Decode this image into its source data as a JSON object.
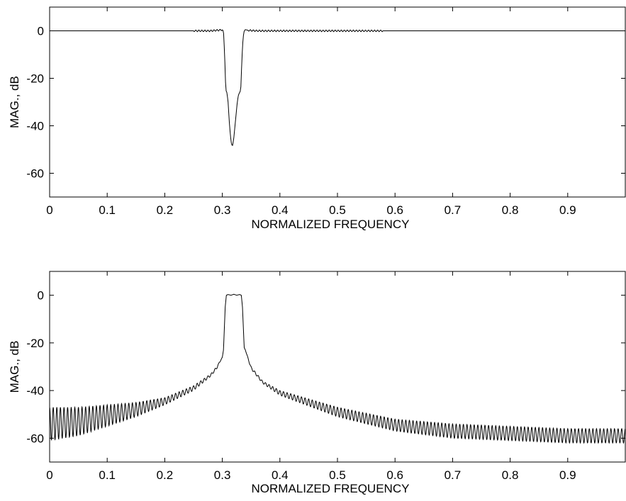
{
  "chart_data": [
    {
      "type": "line",
      "title": "",
      "xlabel": "NORMALIZED FREQUENCY",
      "ylabel": "MAG., dB",
      "xlim": [
        0,
        1
      ],
      "ylim": [
        -70,
        10
      ],
      "xticks": [
        0,
        0.1,
        0.2,
        0.3,
        0.4,
        0.5,
        0.6,
        0.7,
        0.8,
        0.9
      ],
      "xtick_labels": [
        "0",
        "0.1",
        "0.2",
        "0.3",
        "0.4",
        "0.5",
        "0.6",
        "0.7",
        "0.8",
        "0.9"
      ],
      "yticks": [
        0,
        -20,
        -40,
        -60
      ],
      "ytick_labels": [
        "0",
        "-20",
        "-40",
        "-60"
      ],
      "grid": false,
      "legend": "none",
      "line_color": "#000000",
      "series": [
        {
          "x": [
            0,
            0.28,
            0.295,
            0.3,
            0.302,
            0.304,
            0.306,
            0.308,
            0.31,
            0.312,
            0.314,
            0.316,
            0.318,
            0.32,
            0.322,
            0.324,
            0.326,
            0.328,
            0.33,
            0.332,
            0.334,
            0.336,
            0.338,
            0.34,
            0.345,
            0.36,
            1.0
          ],
          "y": [
            0,
            0,
            0.3,
            0.4,
            0,
            -10,
            -25,
            -26,
            -30,
            -38,
            -44,
            -48,
            -48.3,
            -45,
            -40,
            -35,
            -30,
            -27,
            -26,
            -25,
            -12,
            -3,
            0,
            0.5,
            0.2,
            0,
            0
          ]
        }
      ]
    },
    {
      "type": "line",
      "title": "",
      "xlabel": "NORMALIZED FREQUENCY",
      "ylabel": "MAG., dB",
      "xlim": [
        0,
        1
      ],
      "ylim": [
        -70,
        10
      ],
      "xticks": [
        0,
        0.1,
        0.2,
        0.3,
        0.4,
        0.5,
        0.6,
        0.7,
        0.8,
        0.9
      ],
      "xtick_labels": [
        "0",
        "0.1",
        "0.2",
        "0.3",
        "0.4",
        "0.5",
        "0.6",
        "0.7",
        "0.8",
        "0.9"
      ],
      "yticks": [
        0,
        -20,
        -40,
        -60
      ],
      "ytick_labels": [
        "0",
        "-20",
        "-40",
        "-60"
      ],
      "grid": false,
      "legend": "none",
      "line_color": "#000000",
      "series": [
        {
          "upper_envelope": {
            "x": [
              0,
              0.05,
              0.1,
              0.15,
              0.2,
              0.25,
              0.28,
              0.29,
              0.3,
              0.302
            ],
            "y": [
              -47,
              -47,
              -46,
              -45,
              -43,
              -38,
              -33,
              -30,
              -26,
              -23
            ]
          },
          "lower_envelope": {
            "x": [
              0,
              0.05,
              0.1,
              0.15,
              0.2,
              0.25,
              0.28,
              0.29,
              0.3,
              0.302
            ],
            "y": [
              -61,
              -59,
              -55,
              -51,
              -46,
              -40,
              -34,
              -31,
              -26,
              -23
            ]
          },
          "passband": {
            "x": [
              0.302,
              0.305,
              0.307,
              0.31,
              0.315,
              0.32,
              0.325,
              0.33,
              0.333,
              0.335,
              0.338,
              0.34
            ],
            "y": [
              -23,
              -5,
              0,
              0.3,
              0,
              0.4,
              0,
              0.3,
              0,
              -5,
              -22,
              -23
            ]
          },
          "upper_envelope_right": {
            "x": [
              0.34,
              0.35,
              0.37,
              0.4,
              0.5,
              0.6,
              0.7,
              0.8,
              0.9,
              1.0
            ],
            "y": [
              -23,
              -30,
              -36,
              -40,
              -47,
              -52,
              -54,
              -55,
              -56,
              -56
            ]
          },
          "lower_envelope_right": {
            "x": [
              0.34,
              0.35,
              0.37,
              0.4,
              0.5,
              0.6,
              0.7,
              0.8,
              0.9,
              1.0
            ],
            "y": [
              -23,
              -31,
              -37,
              -42,
              -51,
              -57,
              -60,
              -61,
              -62,
              -62
            ]
          }
        }
      ]
    }
  ]
}
